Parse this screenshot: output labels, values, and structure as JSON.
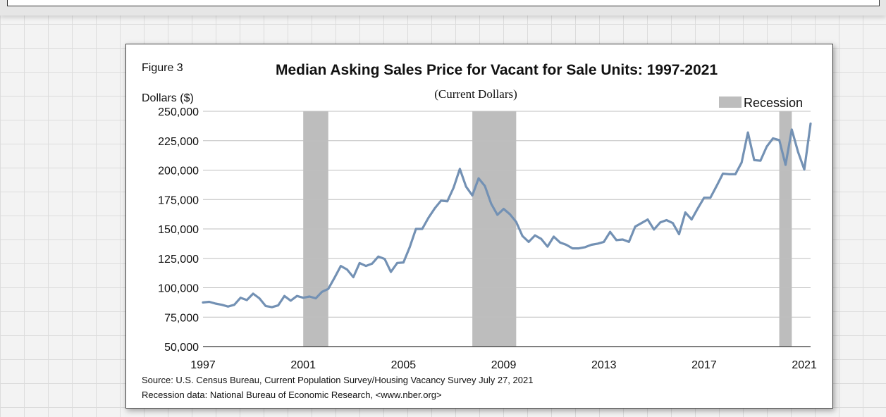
{
  "figure": {
    "label": "Figure 3",
    "title": "Median Asking Sales Price for Vacant for Sale Units: 1997-2021",
    "subtitle": "(Current Dollars)",
    "ylabel": "Dollars ($)",
    "legend_label": "Recession",
    "source_line": "Source: U.S. Census Bureau, Current Population Survey/Housing Vacancy Survey July 27, 2021",
    "recession_line": "Recession data: National Bureau of Economic Research, <www.nber.org>"
  },
  "colors": {
    "series": "#7391b4",
    "recession": "#bdbdbd",
    "grid": "#bfbfbf"
  },
  "chart_data": {
    "type": "line",
    "title": "Median Asking Sales Price for Vacant for Sale Units: 1997-2021",
    "subtitle": "(Current Dollars)",
    "xlabel": "",
    "ylabel": "Dollars ($)",
    "ylim": [
      50000,
      250000
    ],
    "xlim": [
      1997,
      2021.25
    ],
    "yticks": [
      50000,
      75000,
      100000,
      125000,
      150000,
      175000,
      200000,
      225000,
      250000
    ],
    "ytick_labels": [
      "50,000",
      "75,000",
      "100,000",
      "125,000",
      "150,000",
      "175,000",
      "200,000",
      "225,000",
      "250,000"
    ],
    "xticks": [
      1997,
      2001,
      2005,
      2009,
      2013,
      2017,
      2021
    ],
    "xtick_labels": [
      "1997",
      "2001",
      "2005",
      "2009",
      "2013",
      "2017",
      "2021"
    ],
    "grid": "horizontal",
    "legend": "top-right",
    "recessions": [
      {
        "label": "Recession",
        "start": 2001.0,
        "end": 2002.0
      },
      {
        "label": "Recession",
        "start": 2007.75,
        "end": 2009.5
      },
      {
        "label": "Recession",
        "start": 2020.0,
        "end": 2020.5
      }
    ],
    "series": [
      {
        "name": "",
        "x": [
          1997.0,
          1997.25,
          1997.5,
          1997.75,
          1998.0,
          1998.25,
          1998.5,
          1998.75,
          1999.0,
          1999.25,
          1999.5,
          1999.75,
          2000.0,
          2000.25,
          2000.5,
          2000.75,
          2001.0,
          2001.25,
          2001.5,
          2001.75,
          2002.0,
          2002.25,
          2002.5,
          2002.75,
          2003.0,
          2003.25,
          2003.5,
          2003.75,
          2004.0,
          2004.25,
          2004.5,
          2004.75,
          2005.0,
          2005.25,
          2005.5,
          2005.75,
          2006.0,
          2006.25,
          2006.5,
          2006.75,
          2007.0,
          2007.25,
          2007.5,
          2007.75,
          2008.0,
          2008.25,
          2008.5,
          2008.75,
          2009.0,
          2009.25,
          2009.5,
          2009.75,
          2010.0,
          2010.25,
          2010.5,
          2010.75,
          2011.0,
          2011.25,
          2011.5,
          2011.75,
          2012.0,
          2012.25,
          2012.5,
          2012.75,
          2013.0,
          2013.25,
          2013.5,
          2013.75,
          2014.0,
          2014.25,
          2014.5,
          2014.75,
          2015.0,
          2015.25,
          2015.5,
          2015.75,
          2016.0,
          2016.25,
          2016.5,
          2016.75,
          2017.0,
          2017.25,
          2017.5,
          2017.75,
          2018.0,
          2018.25,
          2018.5,
          2018.75,
          2019.0,
          2019.25,
          2019.5,
          2019.75,
          2020.0,
          2020.25,
          2020.5,
          2020.75,
          2021.0,
          2021.25
        ],
        "values": [
          87500,
          88000,
          86500,
          85500,
          84000,
          85500,
          91500,
          89500,
          95000,
          91000,
          84500,
          83500,
          85000,
          93000,
          89000,
          93000,
          91500,
          92500,
          91000,
          96500,
          99000,
          108500,
          118500,
          115500,
          109000,
          121000,
          118500,
          120500,
          126500,
          124500,
          113500,
          121000,
          121500,
          134500,
          150000,
          150000,
          159500,
          167500,
          174000,
          173500,
          185000,
          201000,
          186000,
          178500,
          193000,
          186500,
          171500,
          162000,
          167000,
          162500,
          156000,
          144000,
          139000,
          144500,
          141500,
          135000,
          143500,
          138500,
          136500,
          133500,
          133500,
          134500,
          136500,
          137500,
          139000,
          147500,
          140500,
          141000,
          139000,
          152000,
          155000,
          158000,
          149500,
          155500,
          157500,
          155000,
          145500,
          164000,
          158000,
          167500,
          176500,
          176500,
          186500,
          197000,
          196500,
          196500,
          206500,
          232000,
          208500,
          208000,
          220000,
          227000,
          225500,
          204500,
          234500,
          215500,
          200500,
          239500
        ]
      }
    ]
  }
}
